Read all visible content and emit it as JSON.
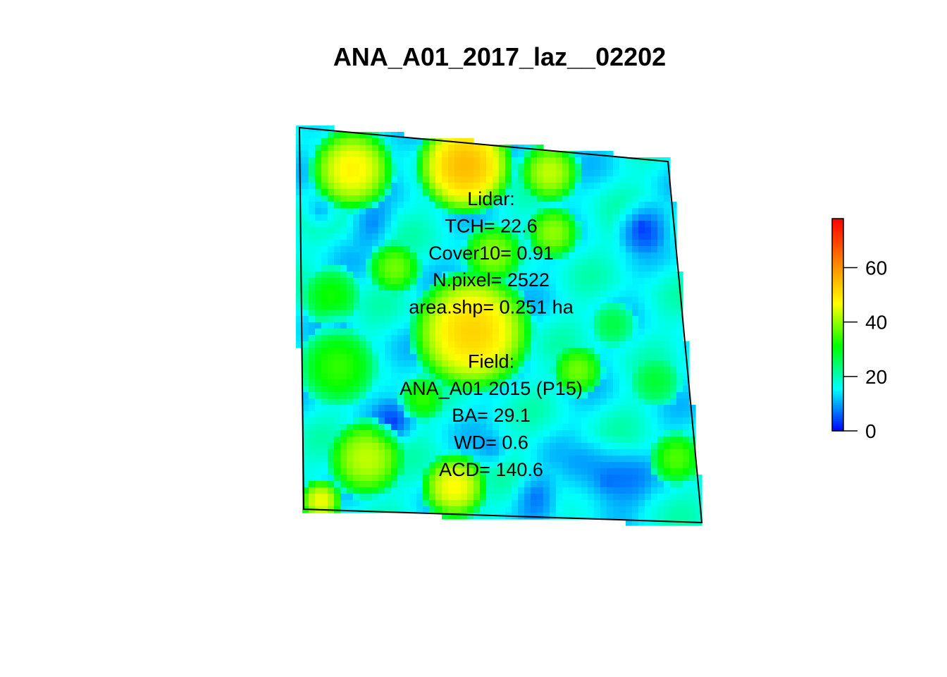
{
  "chart_data": {
    "type": "heatmap",
    "title": "ANA_A01_2017_laz__02202",
    "colorbar": {
      "range": [
        0,
        78
      ],
      "ticks": [
        0,
        20,
        40,
        60
      ],
      "tick_labels": [
        "0",
        "20",
        "40",
        "60"
      ],
      "palette": [
        "#0000ff",
        "#00ffff",
        "#00ff00",
        "#ffff00",
        "#ff7f00",
        "#ff0000"
      ]
    },
    "annotation_lines": [
      "Lidar:",
      "TCH= 22.6",
      "Cover10= 0.91",
      "N.pixel= 2522",
      "area.shp= 0.251 ha",
      "",
      "Field:",
      "ANA_A01 2015 (P15)",
      "BA= 29.1",
      "WD= 0.6",
      "ACD= 140.6"
    ],
    "grid": false,
    "legend_placement": "right"
  }
}
